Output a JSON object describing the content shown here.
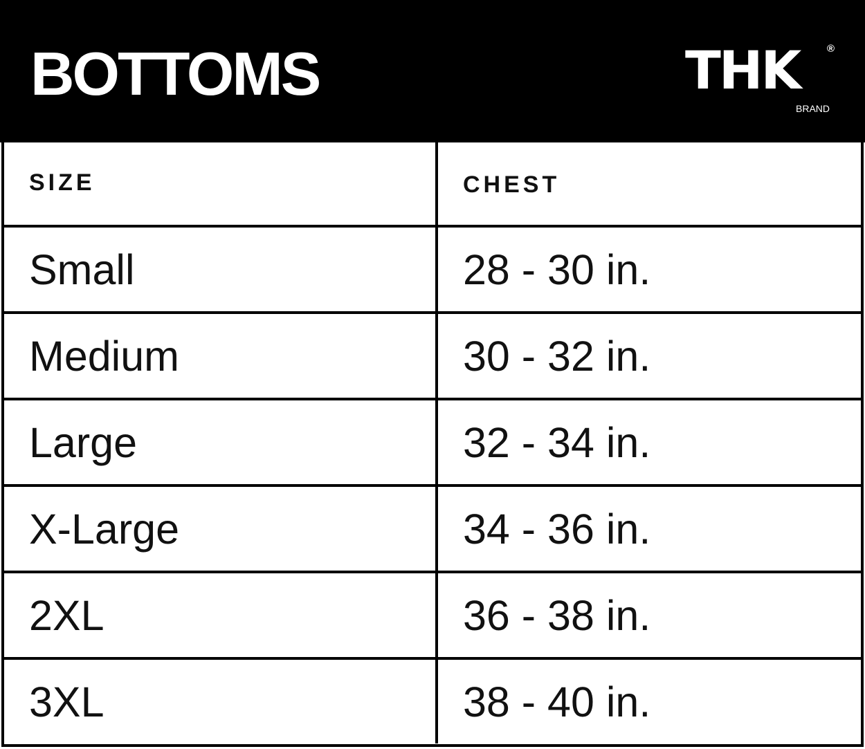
{
  "header": {
    "title": "BOTTOMS",
    "logo": {
      "mark": "THK",
      "registered": "®",
      "sub": "BRAND"
    }
  },
  "table": {
    "columns": [
      "SIZE",
      "CHEST"
    ],
    "rows": [
      [
        "Small",
        "28 - 30 in."
      ],
      [
        "Medium",
        "30 - 32 in."
      ],
      [
        "Large",
        "32 - 34 in."
      ],
      [
        "X-Large",
        "34 - 36 in."
      ],
      [
        "2XL",
        "36 - 38 in."
      ],
      [
        "3XL",
        "38 - 40 in."
      ]
    ]
  },
  "colors": {
    "header_bg": "#000000",
    "header_text": "#ffffff",
    "border": "#000000"
  }
}
